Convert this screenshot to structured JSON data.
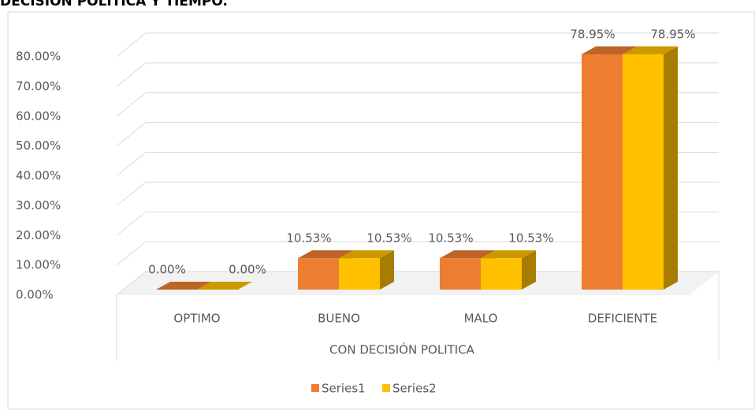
{
  "chart_data": {
    "type": "bar3d",
    "title": "DECISION POLITICA Y TIEMPO.",
    "x_label": "CON  DECISIÓN POLITICA",
    "categories": [
      "OPTIMO",
      "BUENO",
      "MALO",
      "DEFICIENTE"
    ],
    "series": [
      {
        "name": "Series1",
        "color": "#ed7d31",
        "values": [
          0,
          10.53,
          10.53,
          78.95
        ],
        "value_labels": [
          "0.00%",
          "10.53%",
          "10.53%",
          "78.95%"
        ]
      },
      {
        "name": "Series2",
        "color": "#ffc000",
        "values": [
          0,
          10.53,
          10.53,
          78.95
        ],
        "value_labels": [
          "0.00%",
          "10.53%",
          "10.53%",
          "78.95%"
        ]
      }
    ],
    "ylim": [
      0,
      80
    ],
    "yticks": [
      {
        "value": 0,
        "label": "0.00%"
      },
      {
        "value": 10,
        "label": "10.00%"
      },
      {
        "value": 20,
        "label": "20.00%"
      },
      {
        "value": 30,
        "label": "30.00%"
      },
      {
        "value": 40,
        "label": "40.00%"
      },
      {
        "value": 50,
        "label": "50.00%"
      },
      {
        "value": 60,
        "label": "60.00%"
      },
      {
        "value": 70,
        "label": "70.00%"
      },
      {
        "value": 80,
        "label": "80.00%"
      }
    ],
    "grid": true,
    "legend": "bottom"
  }
}
